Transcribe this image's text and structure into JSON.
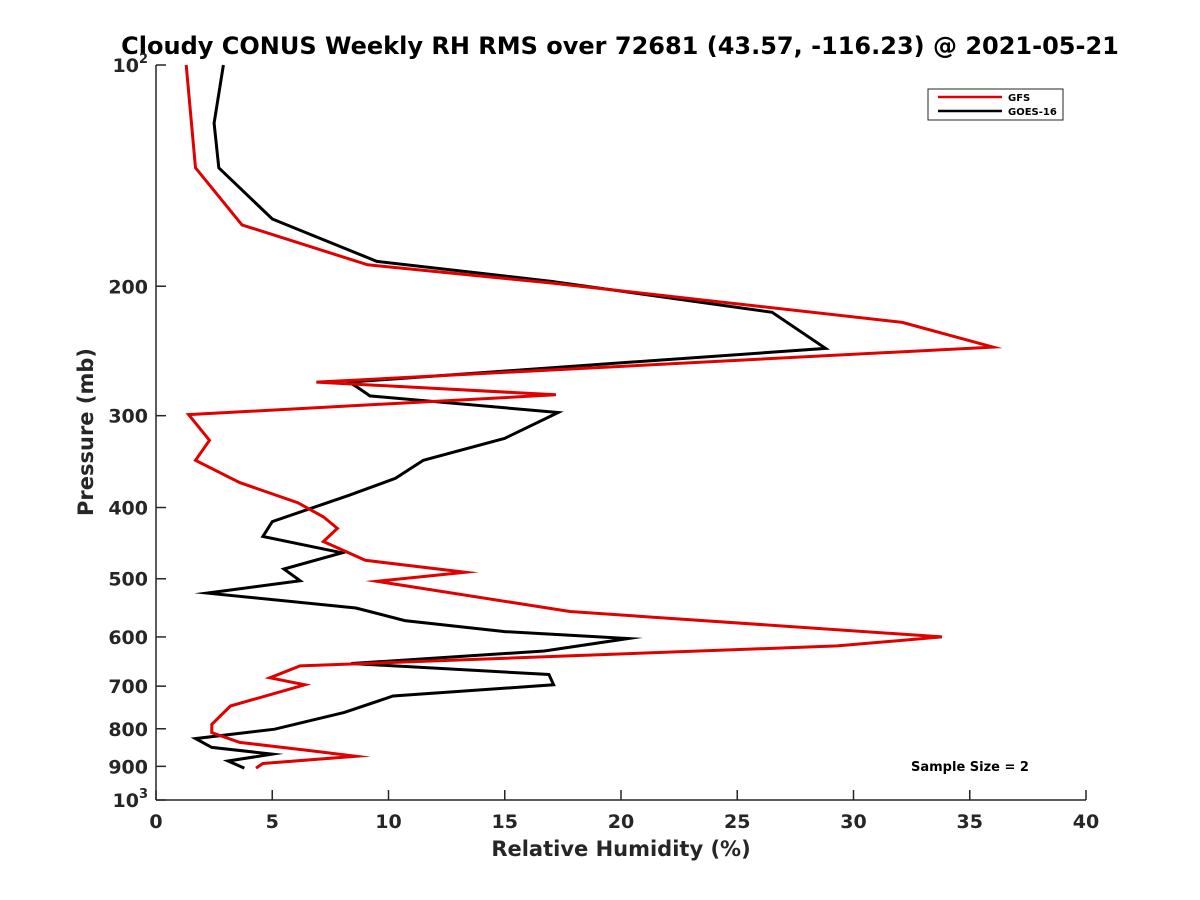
{
  "chart_data": {
    "type": "line",
    "title": "Cloudy CONUS Weekly RH RMS over 72681 (43.57, -116.23) @ 2021-05-21",
    "xlabel": "Relative Humidity (%)",
    "ylabel": "Pressure (mb)",
    "xlim": [
      0,
      40
    ],
    "ylim": [
      100,
      1000
    ],
    "y_scale": "log",
    "y_reversed": true,
    "grid": false,
    "legend_position": "top-right",
    "x_ticks": [
      "0",
      "5",
      "10",
      "15",
      "20",
      "25",
      "30",
      "35",
      "40"
    ],
    "y_ticks": [
      {
        "value": 100,
        "label": "10",
        "sup": "2"
      },
      {
        "value": 200,
        "label": "200",
        "sup": ""
      },
      {
        "value": 300,
        "label": "300",
        "sup": ""
      },
      {
        "value": 400,
        "label": "400",
        "sup": ""
      },
      {
        "value": 500,
        "label": "500",
        "sup": ""
      },
      {
        "value": 600,
        "label": "600",
        "sup": ""
      },
      {
        "value": 700,
        "label": "700",
        "sup": ""
      },
      {
        "value": 800,
        "label": "800",
        "sup": ""
      },
      {
        "value": 900,
        "label": "900",
        "sup": ""
      },
      {
        "value": 1000,
        "label": "10",
        "sup": "3"
      }
    ],
    "series": [
      {
        "name": "GFS",
        "color": "#e00000",
        "x": [
          1.3,
          1.7,
          3.7,
          9.1,
          17.0,
          32.1,
          36.0,
          6.9,
          17.2,
          1.4,
          2.3,
          1.7,
          3.6,
          6.1,
          7.2,
          7.8,
          7.2,
          9.0,
          13.3,
          9.5,
          17.8,
          33.8,
          29.3,
          6.2,
          4.9,
          6.4,
          3.2,
          2.4,
          2.4,
          3.6,
          6.8,
          8.6,
          4.6,
          4.3
        ],
        "y": [
          100,
          138,
          165,
          187,
          198,
          224,
          242,
          270,
          281,
          299,
          324,
          345,
          370,
          394,
          412,
          427,
          445,
          472,
          490,
          504,
          554,
          600,
          617,
          657,
          682,
          697,
          745,
          789,
          810,
          835,
          858,
          872,
          892,
          905
        ]
      },
      {
        "name": "GOES-16",
        "color": "#000000",
        "x": [
          2.9,
          2.5,
          2.7,
          5.0,
          9.5,
          17.0,
          26.5,
          28.8,
          8.3,
          8.7,
          9.2,
          17.3,
          15.0,
          11.5,
          10.3,
          8.3,
          5.0,
          4.6,
          8.0,
          5.5,
          6.2,
          2.2,
          8.6,
          10.7,
          15.0,
          20.3,
          16.7,
          8.4,
          16.9,
          17.1,
          10.2,
          8.1,
          5.1,
          1.7,
          2.4,
          5.0,
          3.1,
          3.8
        ],
        "y": [
          100,
          120,
          138,
          162,
          185,
          197,
          217,
          243,
          270,
          275,
          282,
          297,
          322,
          345,
          365,
          385,
          418,
          438,
          461,
          485,
          503,
          523,
          548,
          570,
          590,
          603,
          627,
          652,
          675,
          697,
          722,
          760,
          801,
          825,
          848,
          866,
          885,
          905
        ]
      }
    ],
    "annotation": "Sample Size = 2"
  }
}
